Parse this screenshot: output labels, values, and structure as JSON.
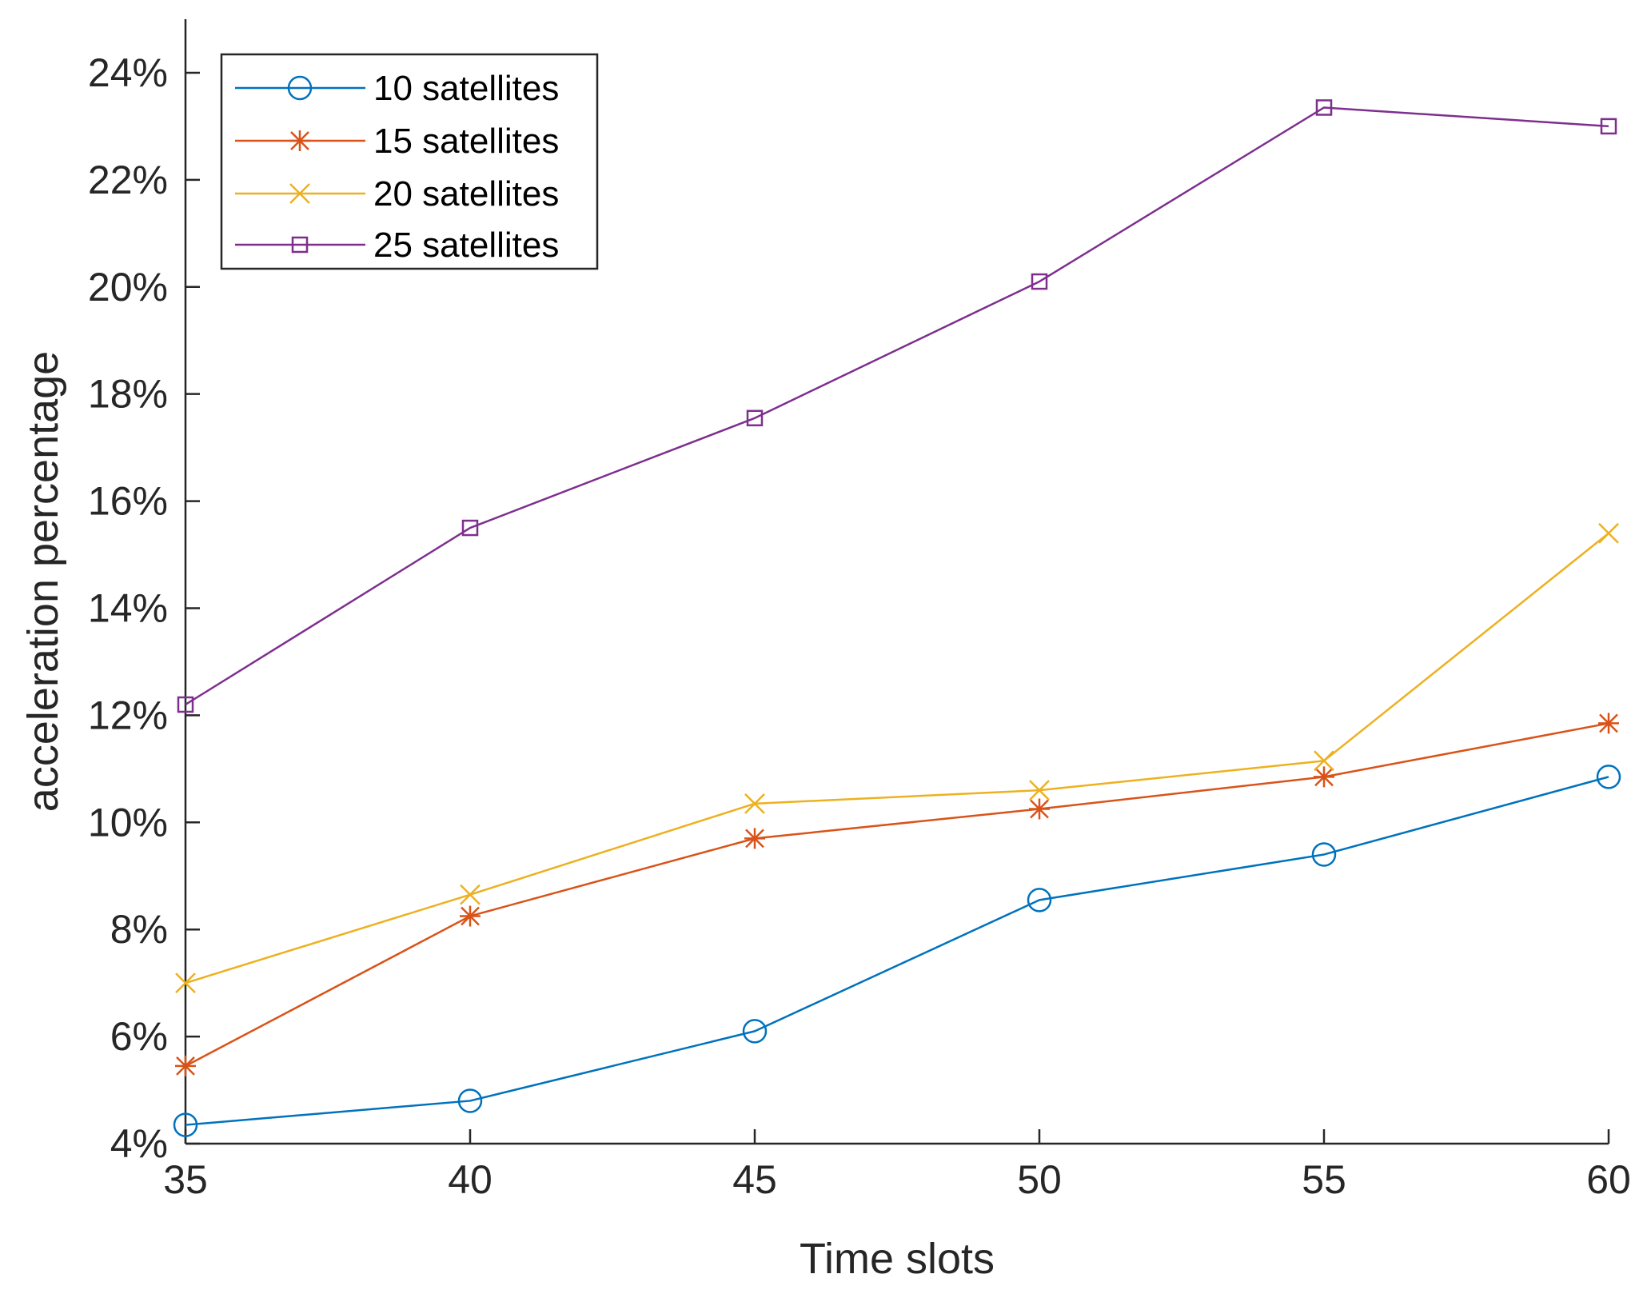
{
  "chart_data": {
    "type": "line",
    "xlabel": "Time slots",
    "ylabel": "acceleration percentage",
    "x": [
      35,
      40,
      45,
      50,
      55,
      60
    ],
    "xlim": [
      35,
      60
    ],
    "ylim": [
      4,
      25
    ],
    "x_ticks": [
      "35",
      "40",
      "45",
      "50",
      "55",
      "60"
    ],
    "y_ticks": [
      {
        "value": 4,
        "label": "4%"
      },
      {
        "value": 6,
        "label": "6%"
      },
      {
        "value": 8,
        "label": "8%"
      },
      {
        "value": 10,
        "label": "10%"
      },
      {
        "value": 12,
        "label": "12%"
      },
      {
        "value": 14,
        "label": "14%"
      },
      {
        "value": 16,
        "label": "16%"
      },
      {
        "value": 18,
        "label": "18%"
      },
      {
        "value": 20,
        "label": "20%"
      },
      {
        "value": 22,
        "label": "22%"
      },
      {
        "value": 24,
        "label": "24%"
      }
    ],
    "grid": false,
    "legend_position": "top-left",
    "series": [
      {
        "name": "10 satellites",
        "color": "#0072BD",
        "marker": "circle",
        "values": [
          4.35,
          4.8,
          6.1,
          8.55,
          9.4,
          10.85
        ]
      },
      {
        "name": "15 satellites",
        "color": "#D95319",
        "marker": "asterisk",
        "values": [
          5.45,
          8.25,
          9.7,
          10.25,
          10.85,
          11.85
        ]
      },
      {
        "name": "20 satellites",
        "color": "#EDB120",
        "marker": "x",
        "values": [
          7.0,
          8.65,
          10.35,
          10.6,
          11.15,
          15.4
        ]
      },
      {
        "name": "25 satellites",
        "color": "#7E2F8E",
        "marker": "square",
        "values": [
          12.2,
          15.5,
          17.55,
          20.1,
          23.35,
          23.0
        ]
      }
    ]
  }
}
